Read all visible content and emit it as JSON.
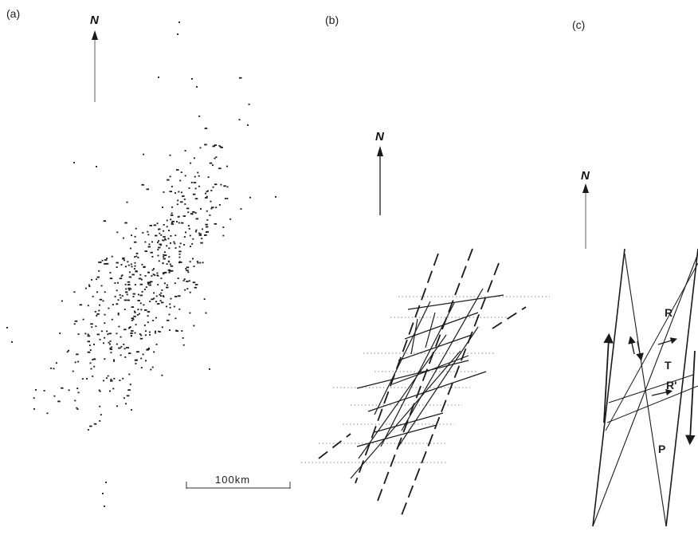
{
  "panels": {
    "a": {
      "label": "(a)"
    },
    "b": {
      "label": "(b)"
    },
    "c": {
      "label": "(c)"
    }
  },
  "north_label": "N",
  "scale_bar": {
    "label": "100km"
  },
  "fracture_labels": {
    "R": "R",
    "T": "T",
    "R_prime": "R'",
    "P": "P"
  },
  "colors": {
    "ink": "#1a1a1a",
    "faint": "#8a8a8a",
    "background": "#ffffff"
  }
}
